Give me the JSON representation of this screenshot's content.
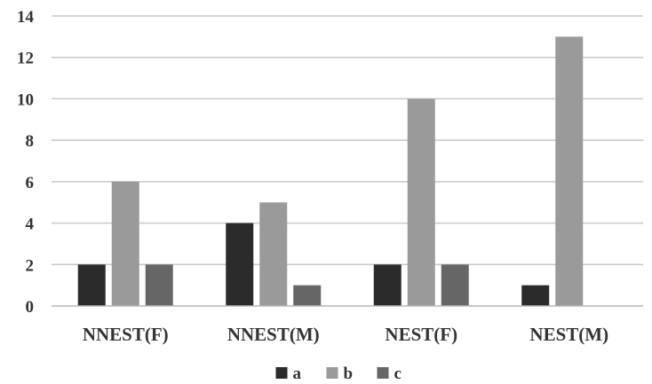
{
  "chart_data": {
    "type": "bar",
    "categories": [
      "NNEST(F)",
      "NNEST(M)",
      "NEST(F)",
      "NEST(M)"
    ],
    "series": [
      {
        "name": "a",
        "values": [
          2,
          4,
          2,
          1
        ],
        "color": "#2b2b2b"
      },
      {
        "name": "b",
        "values": [
          6,
          5,
          10,
          13
        ],
        "color": "#9a9a9a"
      },
      {
        "name": "c",
        "values": [
          2,
          1,
          2,
          0
        ],
        "color": "#666666"
      }
    ],
    "yticks": [
      "0",
      "2",
      "4",
      "6",
      "8",
      "10",
      "12",
      "14"
    ],
    "ylim": [
      0,
      14
    ],
    "grid": true,
    "legend": "bottom-center",
    "title": "",
    "xlabel": "",
    "ylabel": ""
  }
}
